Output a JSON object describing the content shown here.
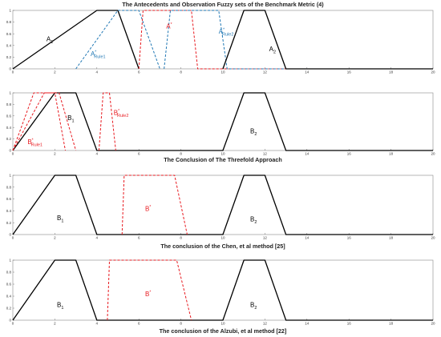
{
  "chart_data": [
    {
      "type": "line",
      "title": "The Antecedents and Observation Fuzzy sets of the Benchmark Metric (4)",
      "xlim": [
        0,
        20
      ],
      "ylim": [
        0,
        1
      ],
      "xticks": [
        0,
        2,
        4,
        6,
        8,
        10,
        12,
        14,
        16,
        18,
        20
      ],
      "yticks": [
        0,
        0.2,
        0.4,
        0.6,
        0.8,
        1
      ],
      "grid": false,
      "series": [
        {
          "color": "#000000",
          "dash": false,
          "x": [
            0,
            4,
            5,
            6
          ],
          "y": [
            0,
            1,
            1,
            0
          ]
        },
        {
          "color": "#1f77b4",
          "dash": true,
          "x": [
            3,
            5,
            6,
            7
          ],
          "y": [
            0,
            1,
            1,
            0
          ]
        },
        {
          "color": "#e8191f",
          "dash": true,
          "x": [
            6,
            6.2,
            8.5,
            8.8,
            10,
            20
          ],
          "y": [
            0,
            1,
            1,
            0,
            0,
            0
          ]
        },
        {
          "color": "#1f77b4",
          "dash": true,
          "x": [
            7.2,
            7.5,
            9.8,
            10.2,
            11.5,
            20
          ],
          "y": [
            0,
            1,
            1,
            0,
            0,
            0
          ]
        },
        {
          "color": "#000000",
          "dash": false,
          "x": [
            10,
            11,
            12,
            13,
            14
          ],
          "y": [
            0,
            1,
            1,
            0,
            0
          ]
        },
        {
          "color": "#000000",
          "dash": false,
          "x": [
            14,
            20
          ],
          "y": [
            0,
            0
          ]
        }
      ],
      "labels": [
        {
          "x": 1.6,
          "y": 0.47,
          "main": "A",
          "sub": "1",
          "sup": "",
          "color": "#000000"
        },
        {
          "x": 3.7,
          "y": 0.22,
          "main": "A",
          "sub": "Rule1",
          "sup": "*",
          "color": "#1f77b4"
        },
        {
          "x": 7.3,
          "y": 0.69,
          "main": "A",
          "sub": "",
          "sup": "*",
          "color": "#e8191f"
        },
        {
          "x": 9.8,
          "y": 0.6,
          "main": "A",
          "sub": "Rule2",
          "sup": "*",
          "color": "#1f77b4"
        },
        {
          "x": 12.2,
          "y": 0.3,
          "main": "A",
          "sub": "2",
          "sup": "",
          "color": "#000000"
        }
      ]
    },
    {
      "type": "line",
      "title": "The Conclusion of The Threefold Approach",
      "xlim": [
        0,
        20
      ],
      "ylim": [
        0,
        1
      ],
      "xticks": [
        0,
        2,
        4,
        6,
        8,
        10,
        12,
        14,
        16,
        18,
        20
      ],
      "yticks": [
        0,
        0.2,
        0.4,
        0.6,
        0.8,
        1
      ],
      "grid": false,
      "series": [
        {
          "color": "#000000",
          "dash": false,
          "x": [
            0,
            2,
            3,
            4,
            5,
            10,
            11,
            12,
            13,
            20
          ],
          "y": [
            0,
            1,
            1,
            0,
            0,
            0,
            1,
            1,
            0,
            0
          ]
        },
        {
          "color": "#e8191f",
          "dash": true,
          "x": [
            0,
            1,
            2,
            2.5
          ],
          "y": [
            0,
            1,
            1,
            0
          ]
        },
        {
          "color": "#e8191f",
          "dash": true,
          "x": [
            0,
            1.5,
            2.2,
            3
          ],
          "y": [
            0,
            1,
            1,
            0
          ]
        },
        {
          "color": "#e8191f",
          "dash": true,
          "x": [
            4.1,
            4.3,
            4.6,
            4.9
          ],
          "y": [
            0,
            1,
            1,
            0
          ]
        }
      ],
      "labels": [
        {
          "x": 2.6,
          "y": 0.53,
          "main": "B",
          "sub": "1",
          "sup": "",
          "color": "#000000"
        },
        {
          "x": 4.8,
          "y": 0.62,
          "main": "B",
          "sub": "Rule2",
          "sup": "*",
          "color": "#e8191f"
        },
        {
          "x": 11.3,
          "y": 0.3,
          "main": "B",
          "sub": "2",
          "sup": "",
          "color": "#000000"
        },
        {
          "x": 0.7,
          "y": 0.11,
          "main": "B",
          "sub": "Rule1",
          "sup": "*",
          "color": "#e8191f"
        }
      ]
    },
    {
      "type": "line",
      "title": "The conclusion of the Chen, et al method  [25]",
      "xlim": [
        0,
        20
      ],
      "ylim": [
        0,
        1
      ],
      "xticks": [
        0,
        2,
        4,
        6,
        8,
        10,
        12,
        14,
        16,
        18,
        20
      ],
      "yticks": [
        0,
        0.2,
        0.4,
        0.6,
        0.8,
        1
      ],
      "grid": false,
      "series": [
        {
          "color": "#000000",
          "dash": false,
          "x": [
            0,
            2,
            3,
            4,
            5,
            10,
            11,
            12,
            13,
            20
          ],
          "y": [
            0,
            1,
            1,
            0,
            0,
            0,
            1,
            1,
            0,
            0
          ]
        },
        {
          "color": "#e8191f",
          "dash": true,
          "x": [
            5.2,
            5.3,
            7.7,
            8.3
          ],
          "y": [
            0,
            1,
            1,
            0
          ]
        }
      ],
      "labels": [
        {
          "x": 2.1,
          "y": 0.24,
          "main": "B",
          "sub": "1",
          "sup": "",
          "color": "#000000"
        },
        {
          "x": 6.3,
          "y": 0.4,
          "main": "B",
          "sub": "",
          "sup": "*",
          "color": "#e8191f"
        },
        {
          "x": 11.3,
          "y": 0.22,
          "main": "B",
          "sub": "2",
          "sup": "",
          "color": "#000000"
        }
      ]
    },
    {
      "type": "line",
      "title": "The conclusion of the Alzubi, et al method  [22]",
      "xlim": [
        0,
        20
      ],
      "ylim": [
        0,
        1
      ],
      "xticks": [
        0,
        2,
        4,
        6,
        8,
        10,
        12,
        14,
        16,
        18,
        20
      ],
      "yticks": [
        0,
        0.2,
        0.4,
        0.6,
        0.8,
        1
      ],
      "grid": false,
      "series": [
        {
          "color": "#000000",
          "dash": false,
          "x": [
            0,
            2,
            3,
            4,
            5,
            10,
            11,
            12,
            13,
            20
          ],
          "y": [
            0,
            1,
            1,
            0,
            0,
            0,
            1,
            1,
            0,
            0
          ]
        },
        {
          "color": "#e8191f",
          "dash": true,
          "x": [
            4.5,
            4.6,
            7.8,
            8.5
          ],
          "y": [
            0,
            1,
            1,
            0
          ]
        }
      ],
      "labels": [
        {
          "x": 2.1,
          "y": 0.22,
          "main": "B",
          "sub": "1",
          "sup": "",
          "color": "#000000"
        },
        {
          "x": 6.3,
          "y": 0.4,
          "main": "B",
          "sub": "",
          "sup": "*",
          "color": "#e8191f"
        },
        {
          "x": 11.3,
          "y": 0.22,
          "main": "B",
          "sub": "2",
          "sup": "",
          "color": "#000000"
        }
      ]
    }
  ]
}
